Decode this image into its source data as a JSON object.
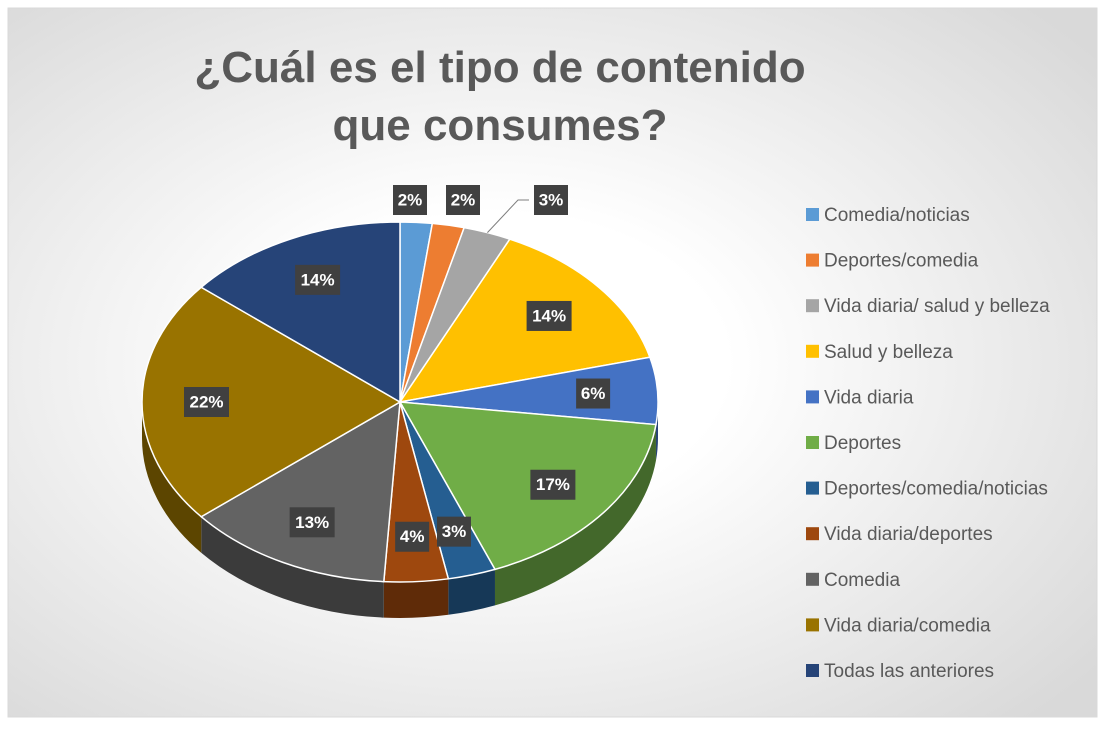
{
  "chart_data": {
    "type": "pie",
    "title": "¿Cuál es el tipo de contenido que consumes?",
    "categories": [
      "Comedia/noticias",
      "Deportes/comedia",
      "Vida diaria/ salud y belleza",
      "Salud y belleza",
      "Vida diaria",
      "Deportes",
      "Deportes/comedia/noticias",
      "Vida diaria/deportes",
      "Comedia",
      "Vida diaria/comedia",
      "Todas las anteriores"
    ],
    "values": [
      2,
      2,
      3,
      14,
      6,
      17,
      3,
      4,
      13,
      22,
      14
    ],
    "value_labels": [
      "2%",
      "2%",
      "3%",
      "14%",
      "6%",
      "17%",
      "3%",
      "4%",
      "13%",
      "22%",
      "14%"
    ],
    "colors": [
      "#5b9bd5",
      "#ed7d31",
      "#a5a5a5",
      "#ffc000",
      "#4472c4",
      "#70ad47",
      "#255e91",
      "#9e480e",
      "#636363",
      "#997300",
      "#264478"
    ],
    "legend": "right"
  }
}
